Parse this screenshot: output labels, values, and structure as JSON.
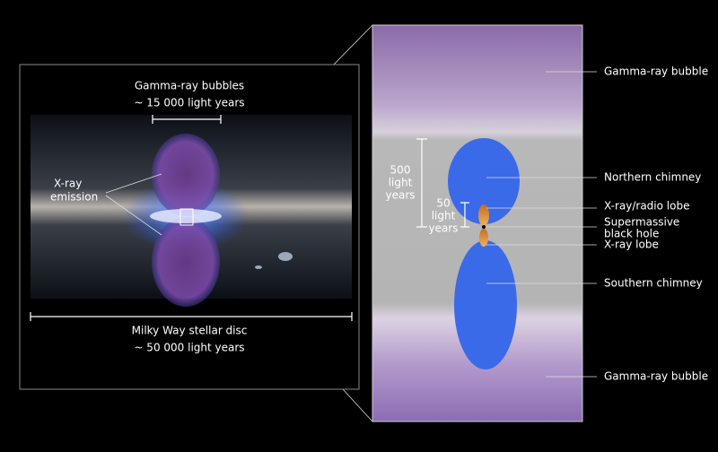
{
  "left_panel": {
    "bubbles_label": [
      "Gamma-ray bubbles",
      "~ 15 000 light years"
    ],
    "xray_label": [
      "X-ray",
      "emission"
    ],
    "disc_label": [
      "Milky Way stellar disc",
      "~ 50 000 light years"
    ]
  },
  "right_panel": {
    "scale_large": [
      "500",
      "light",
      "years"
    ],
    "scale_small": [
      "50",
      "light",
      "years"
    ],
    "callouts": [
      [
        "Gamma-ray bubble"
      ],
      [
        "Northern chimney"
      ],
      [
        "X-ray/radio lobe"
      ],
      [
        "Supermassive",
        "black hole"
      ],
      [
        "X-ray lobe"
      ],
      [
        "Southern chimney"
      ],
      [
        "Gamma-ray bubble"
      ]
    ]
  }
}
